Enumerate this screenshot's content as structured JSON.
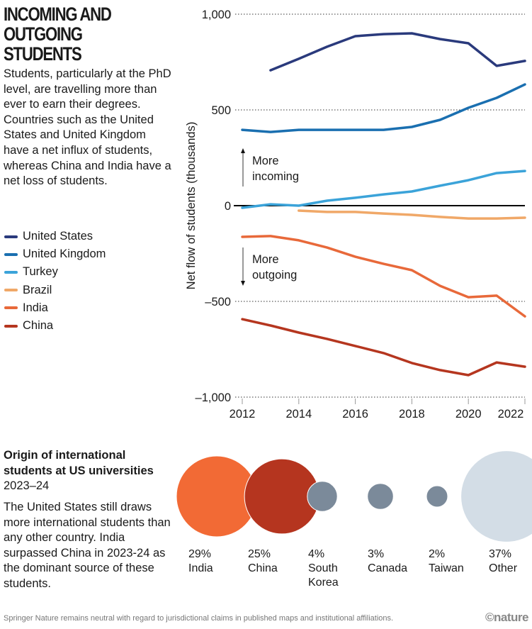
{
  "header": {
    "title": "INCOMING AND OUTGOING STUDENTS",
    "description": "Students, particularly at the PhD level, are travelling more than ever to earn their degrees. Countries such as the United States and United Kingdom have a net influx of students, whereas China and India have a net loss of students."
  },
  "chart_data": [
    {
      "type": "line",
      "title": "Incoming and outgoing students",
      "xlabel": "",
      "ylabel": "Net flow of students (thousands)",
      "x": [
        2012,
        2013,
        2014,
        2015,
        2016,
        2017,
        2018,
        2019,
        2020,
        2021,
        2022
      ],
      "xticks": [
        "2012",
        "2014",
        "2016",
        "2018",
        "2020",
        "2022"
      ],
      "xtick_values": [
        2012,
        2014,
        2016,
        2018,
        2020,
        2022
      ],
      "yticks": [
        "1,000",
        "500",
        "0",
        "–500",
        "–1,000"
      ],
      "ytick_values": [
        1000,
        500,
        0,
        -500,
        -1000
      ],
      "ylim": [
        -1000,
        1000
      ],
      "xlim": [
        2012,
        2022
      ],
      "grid": "horizontal dotted",
      "legend": "left",
      "annotations": [
        {
          "text_line1": "More",
          "text_line2": "incoming",
          "direction": "up"
        },
        {
          "text_line1": "More",
          "text_line2": "outgoing",
          "direction": "down"
        }
      ],
      "series": [
        {
          "name": "United States",
          "color": "#2a3a7c",
          "values": [
            null,
            707,
            767,
            830,
            885,
            896,
            900,
            870,
            848,
            730,
            756
          ]
        },
        {
          "name": "United Kingdom",
          "color": "#1a6fb0",
          "values": [
            396,
            385,
            396,
            396,
            396,
            396,
            411,
            448,
            511,
            563,
            633
          ]
        },
        {
          "name": "Turkey",
          "color": "#3ba3d9",
          "values": [
            -11,
            7,
            0,
            26,
            41,
            59,
            74,
            104,
            133,
            170,
            181
          ]
        },
        {
          "name": "Brazil",
          "color": "#f0a868",
          "values": [
            null,
            null,
            -26,
            -33,
            -33,
            -41,
            -48,
            -59,
            -67,
            -67,
            -63
          ]
        },
        {
          "name": "India",
          "color": "#e8693a",
          "values": [
            -163,
            -159,
            -181,
            -219,
            -267,
            -304,
            -337,
            -419,
            -478,
            -470,
            -578
          ]
        },
        {
          "name": "China",
          "color": "#b5361f",
          "values": [
            -593,
            -626,
            -663,
            -696,
            -733,
            -770,
            -822,
            -859,
            -885,
            -819,
            -841
          ]
        }
      ]
    },
    {
      "type": "bubble",
      "title": "Origin of international students at US universities",
      "period": "2023–24",
      "items": [
        {
          "country": "India",
          "percent": 29,
          "label": "29%",
          "color": "#f26a35"
        },
        {
          "country": "China",
          "percent": 25,
          "label": "25%",
          "color": "#b5351f"
        },
        {
          "country": "South Korea",
          "percent": 4,
          "label": "4%",
          "color": "#7b8a9a"
        },
        {
          "country": "Canada",
          "percent": 3,
          "label": "3%",
          "color": "#7b8a9a"
        },
        {
          "country": "Taiwan",
          "percent": 2,
          "label": "2%",
          "color": "#7b8a9a"
        },
        {
          "country": "Other",
          "percent": 37,
          "label": "37%",
          "color": "#d3dde6"
        }
      ]
    }
  ],
  "section2": {
    "title_bold": "Origin of international students at US universities",
    "title_period": "2023–24",
    "description": "The United States still draws more international students than any other country. India surpassed China in 2023-24 as the dominant source of these students."
  },
  "bubble_labels": [
    {
      "pct": "29%",
      "line1": "India",
      "line2": ""
    },
    {
      "pct": "25%",
      "line1": "China",
      "line2": ""
    },
    {
      "pct": "4%",
      "line1": "South",
      "line2": "Korea"
    },
    {
      "pct": "3%",
      "line1": "Canada",
      "line2": ""
    },
    {
      "pct": "2%",
      "line1": "Taiwan",
      "line2": ""
    },
    {
      "pct": "37%",
      "line1": "Other",
      "line2": ""
    }
  ],
  "footer": {
    "disclaimer": "Springer Nature remains neutral with regard to jurisdictional claims in published maps and institutional affiliations.",
    "logo": "©nature"
  }
}
